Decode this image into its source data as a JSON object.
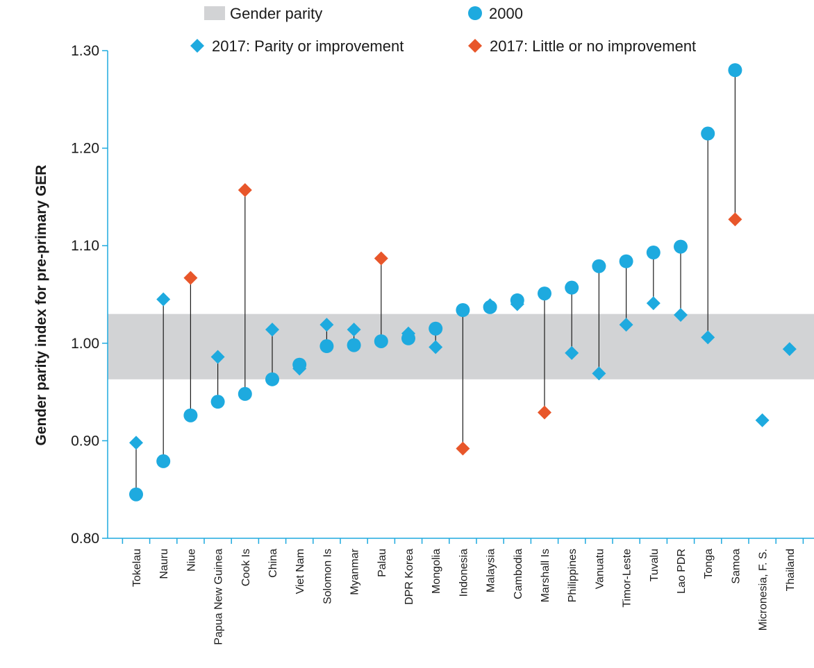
{
  "chart_data": {
    "type": "scatter",
    "title": "",
    "xlabel": "",
    "ylabel": "Gender parity index for pre-primary GER",
    "ylim": [
      0.8,
      1.3
    ],
    "yticks": [
      "0.80",
      "0.90",
      "1.00",
      "1.10",
      "1.20",
      "1.30"
    ],
    "ytick_values": [
      0.8,
      0.9,
      1.0,
      1.1,
      1.2,
      1.3
    ],
    "parity_band": [
      0.963,
      1.03
    ],
    "legend": {
      "placement": "top",
      "band": "Gender parity",
      "series_2000": "2000",
      "series_2017_improve": "2017: Parity or improvement",
      "series_2017_noimprove": "2017: Little or no improvement"
    },
    "colors": {
      "series_2000": "#1eaadf",
      "improve": "#1eaadf",
      "noimprove": "#e8562a",
      "band": "#d2d3d5",
      "axis": "#1eaadf",
      "connector": "#1a1a1a"
    },
    "categories": [
      "Tokelau",
      "Nauru",
      "Niue",
      "Papua New Guinea",
      "Cook Is",
      "China",
      "Viet Nam",
      "Solomon Is",
      "Myanmar",
      "Palau",
      "DPR Korea",
      "Mongolia",
      "Indonesia",
      "Malaysia",
      "Cambodia",
      "Marshall Is",
      "Philippines",
      "Vanuatu",
      "Timor-Leste",
      "Tuvalu",
      "Lao PDR",
      "Tonga",
      "Samoa",
      "Micronesia, F. S.",
      "Thailand"
    ],
    "values_2000": [
      0.845,
      0.879,
      0.926,
      0.94,
      0.948,
      0.963,
      0.978,
      0.997,
      0.998,
      1.002,
      1.005,
      1.015,
      1.034,
      1.037,
      1.044,
      1.051,
      1.057,
      1.079,
      1.084,
      1.093,
      1.099,
      1.215,
      1.28,
      null,
      null
    ],
    "values_2017": [
      0.898,
      1.045,
      1.067,
      0.986,
      1.157,
      1.014,
      0.974,
      1.019,
      1.014,
      1.087,
      1.01,
      0.996,
      0.892,
      1.039,
      1.04,
      0.929,
      0.99,
      0.969,
      1.019,
      1.041,
      1.029,
      1.006,
      1.127,
      0.921,
      0.994
    ],
    "status_2017": [
      "improve",
      "improve",
      "noimprove",
      "improve",
      "noimprove",
      "improve",
      "improve",
      "improve",
      "improve",
      "noimprove",
      "improve",
      "improve",
      "noimprove",
      "improve",
      "improve",
      "noimprove",
      "improve",
      "improve",
      "improve",
      "improve",
      "improve",
      "improve",
      "noimprove",
      "improve",
      "improve"
    ]
  }
}
